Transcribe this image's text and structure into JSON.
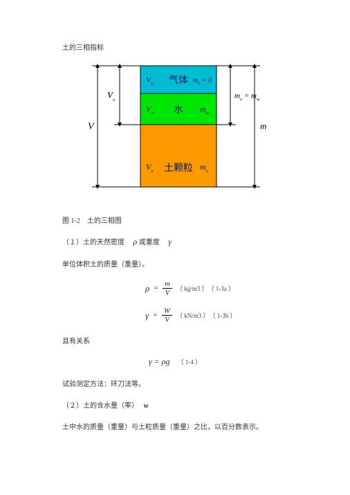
{
  "title": "土的三相指标",
  "diagram": {
    "gas": {
      "label_vol": "V",
      "label_vol_sub": "a",
      "label_name": "气体",
      "label_mass": "m",
      "label_mass_sub": "a",
      "mass_expr": "= 0",
      "fill": "#00bcd4"
    },
    "water": {
      "label_vol": "V",
      "label_vol_sub": "w",
      "label_name": "水",
      "label_mass": "m",
      "label_mass_sub": "w",
      "fill": "#00e600"
    },
    "solid": {
      "label_vol": "V",
      "label_vol_sub": "s",
      "label_name": "土颗粒",
      "label_mass": "m",
      "label_mass_sub": "s",
      "fill": "#ff9900"
    },
    "left_total": "V",
    "left_voids": {
      "sym": "V",
      "sub": "v"
    },
    "right_half": {
      "lhs_sym": "m",
      "lhs_sub": "v",
      "eq": "=",
      "rhs_sym": "m",
      "rhs_sub": "w"
    },
    "right_total": "m",
    "heights": {
      "gas": 40,
      "water": 45,
      "solid": 90
    }
  },
  "caption": "图 1-2　土的三相图",
  "sec1": {
    "heading_prefix": "（１）土的天然密度　",
    "rho": "ρ",
    "mid": " 或重度　",
    "gamma": "γ",
    "line2": "单位体积土的质量（重量）。"
  },
  "eq1": {
    "lhs": "ρ",
    "eq": "=",
    "num": "m",
    "den": "V",
    "unit": "（ kg/m3 ）　（ 1-3a ）"
  },
  "eq2": {
    "lhs": "γ",
    "eq": "=",
    "num": "W",
    "den": "V",
    "unit": "（ kN/m3 ）　（ 1-3b ）"
  },
  "rel_label": "且有关系",
  "eq3": {
    "text": "γ = ρg",
    "ref": "（ 1-4 ）"
  },
  "method": "试验测定方法：环刀法等。",
  "sec2": {
    "heading": "（２）土的含水量（率）　",
    "sym": "w"
  },
  "sec2_line": "土中水的质量（重量）与土粒质量（重量）之比，以百分数表示。"
}
